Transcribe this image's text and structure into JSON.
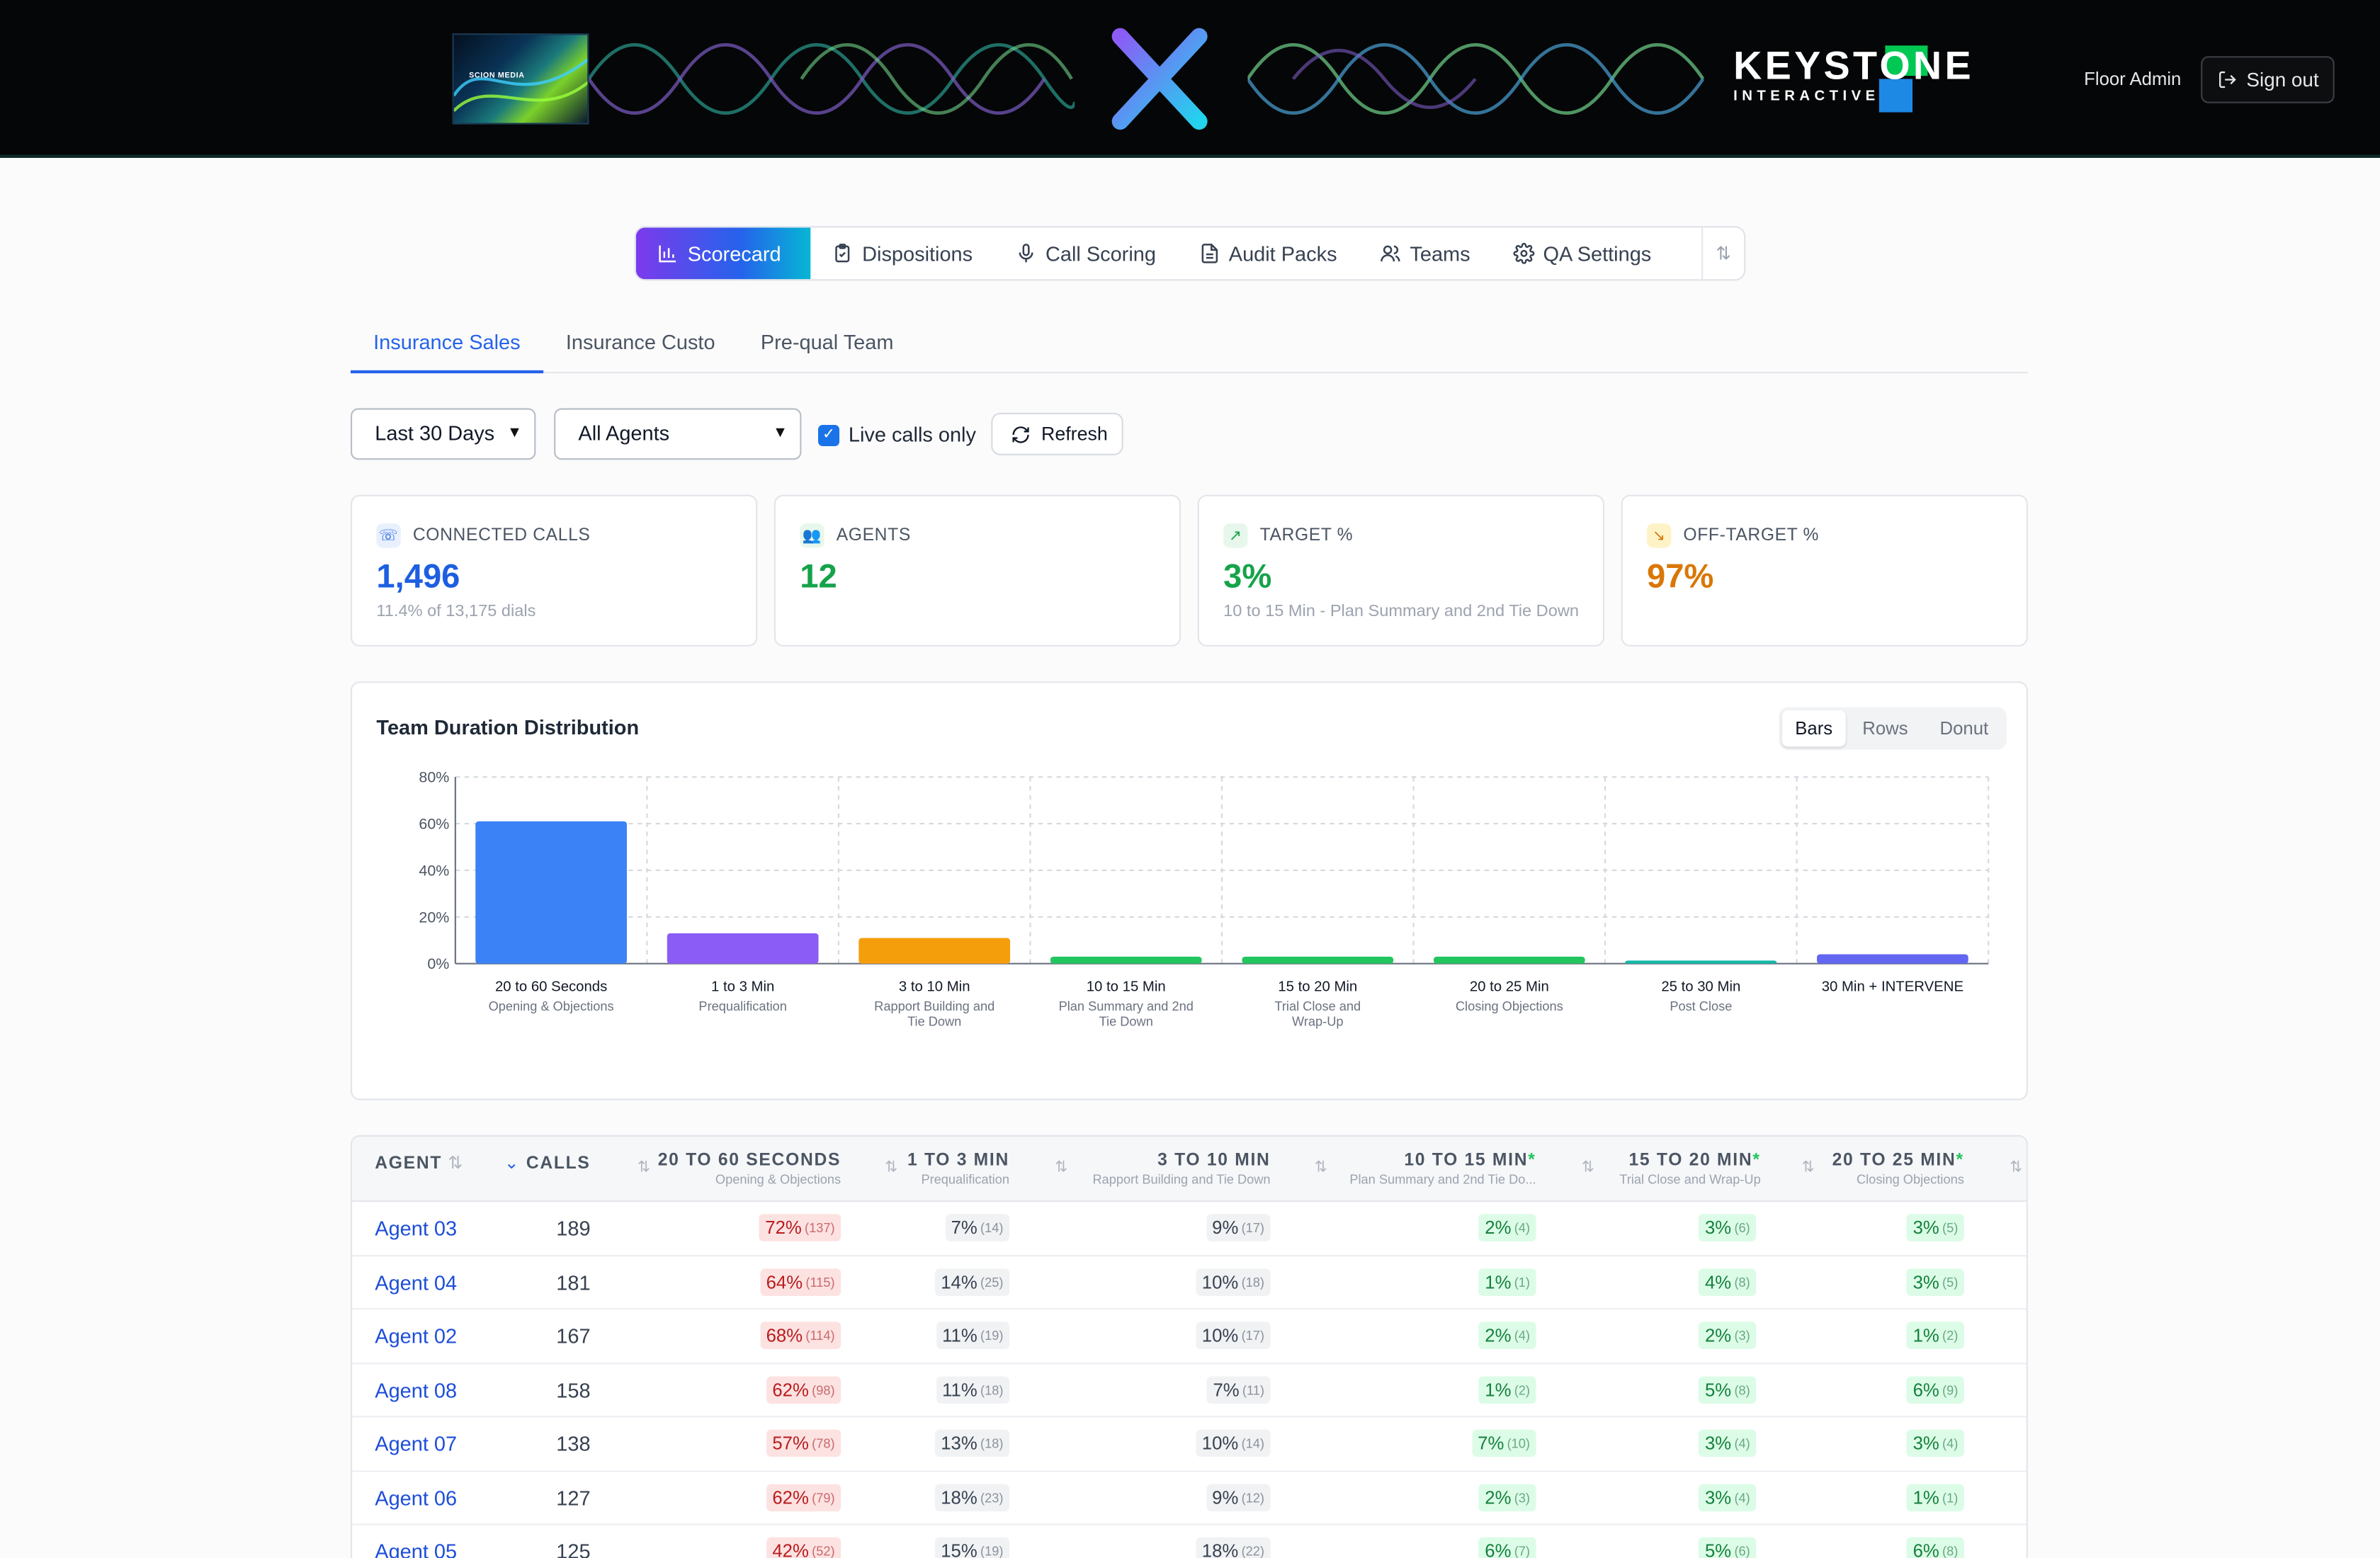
{
  "header": {
    "left_logo_text": "SCION MEDIA",
    "right_logo_line1": "KEYSTONE",
    "right_logo_line2": "INTERACTIVE",
    "user": "Floor Admin",
    "signout": "Sign out"
  },
  "nav": {
    "tabs": [
      "Scorecard",
      "Dispositions",
      "Call Scoring",
      "Audit Packs",
      "Teams",
      "QA Settings"
    ],
    "active": "Scorecard"
  },
  "subtabs": [
    "Insurance Sales",
    "Insurance Custo",
    "Pre-qual Team"
  ],
  "filters": {
    "range": "Last 30 Days",
    "agents": "All Agents",
    "live_label": "Live calls only",
    "live_checked": true,
    "refresh": "Refresh"
  },
  "stats": [
    {
      "label": "CONNECTED CALLS",
      "value": "1,496",
      "sub": "11.4% of 13,175 dials",
      "color": "#1d5fe0",
      "icon": "phone-icon"
    },
    {
      "label": "AGENTS",
      "value": "12",
      "sub": "",
      "color": "#16a34a",
      "icon": "users-icon"
    },
    {
      "label": "TARGET %",
      "value": "3%",
      "sub": "10 to 15 Min - Plan Summary and 2nd Tie Down",
      "color": "#16a34a",
      "icon": "trend-up-icon"
    },
    {
      "label": "OFF-TARGET %",
      "value": "97%",
      "sub": "",
      "color": "#d97706",
      "icon": "trend-down-icon"
    }
  ],
  "chart_panel": {
    "title": "Team Duration Distribution",
    "view_options": [
      "Bars",
      "Rows",
      "Donut"
    ],
    "active_view": "Bars"
  },
  "chart_data": {
    "type": "bar",
    "title": "Team Duration Distribution",
    "categories": [
      "20 to 60 Seconds",
      "1 to 3 Min",
      "3 to 10 Min",
      "10 to 15 Min",
      "15 to 20 Min",
      "20 to 25 Min",
      "25 to 30 Min",
      "30 Min + INTERVENE"
    ],
    "category_sublabels": [
      "Opening & Objections",
      "Prequalification",
      "Rapport Building and Tie Down",
      "Plan Summary and 2nd Tie Down",
      "Trial Close and Wrap-Up",
      "Closing Objections",
      "Post Close",
      ""
    ],
    "values": [
      61,
      13,
      11,
      3,
      3,
      3,
      1,
      4
    ],
    "colors": [
      "#3b82f6",
      "#8b5cf6",
      "#f59e0b",
      "#22c55e",
      "#22c55e",
      "#22c55e",
      "#14b8a6",
      "#6366f1"
    ],
    "ylim": [
      0,
      80
    ],
    "yticks": [
      "0%",
      "20%",
      "40%",
      "60%",
      "80%"
    ],
    "grid": true
  },
  "table": {
    "columns": [
      {
        "h": "AGENT",
        "s": ""
      },
      {
        "h": "CALLS",
        "s": ""
      },
      {
        "h": "20 TO 60 SECONDS",
        "s": "Opening & Objections"
      },
      {
        "h": "1 TO 3 MIN",
        "s": "Prequalification"
      },
      {
        "h": "3 TO 10 MIN",
        "s": "Rapport Building and Tie Down"
      },
      {
        "h": "10 TO 15 MIN",
        "s": "Plan Summary and 2nd Tie Do..."
      },
      {
        "h": "15 TO 20 MIN",
        "s": "Trial Close and Wrap-Up"
      },
      {
        "h": "20 TO 25 MIN",
        "s": "Closing Objections"
      }
    ],
    "rows": [
      {
        "agent": "Agent 03",
        "calls": "189",
        "cells": [
          [
            "72%",
            "(137)"
          ],
          [
            "7%",
            "(14)"
          ],
          [
            "9%",
            "(17)"
          ],
          [
            "2%",
            "(4)"
          ],
          [
            "3%",
            "(6)"
          ],
          [
            "3%",
            "(5)"
          ]
        ]
      },
      {
        "agent": "Agent 04",
        "calls": "181",
        "cells": [
          [
            "64%",
            "(115)"
          ],
          [
            "14%",
            "(25)"
          ],
          [
            "10%",
            "(18)"
          ],
          [
            "1%",
            "(1)"
          ],
          [
            "4%",
            "(8)"
          ],
          [
            "3%",
            "(5)"
          ]
        ]
      },
      {
        "agent": "Agent 02",
        "calls": "167",
        "cells": [
          [
            "68%",
            "(114)"
          ],
          [
            "11%",
            "(19)"
          ],
          [
            "10%",
            "(17)"
          ],
          [
            "2%",
            "(4)"
          ],
          [
            "2%",
            "(3)"
          ],
          [
            "1%",
            "(2)"
          ]
        ]
      },
      {
        "agent": "Agent 08",
        "calls": "158",
        "cells": [
          [
            "62%",
            "(98)"
          ],
          [
            "11%",
            "(18)"
          ],
          [
            "7%",
            "(11)"
          ],
          [
            "1%",
            "(2)"
          ],
          [
            "5%",
            "(8)"
          ],
          [
            "6%",
            "(9)"
          ]
        ]
      },
      {
        "agent": "Agent 07",
        "calls": "138",
        "cells": [
          [
            "57%",
            "(78)"
          ],
          [
            "13%",
            "(18)"
          ],
          [
            "10%",
            "(14)"
          ],
          [
            "7%",
            "(10)"
          ],
          [
            "3%",
            "(4)"
          ],
          [
            "3%",
            "(4)"
          ]
        ]
      },
      {
        "agent": "Agent 06",
        "calls": "127",
        "cells": [
          [
            "62%",
            "(79)"
          ],
          [
            "18%",
            "(23)"
          ],
          [
            "9%",
            "(12)"
          ],
          [
            "2%",
            "(3)"
          ],
          [
            "3%",
            "(4)"
          ],
          [
            "1%",
            "(1)"
          ]
        ]
      },
      {
        "agent": "Agent 05",
        "calls": "125",
        "cells": [
          [
            "42%",
            "(52)"
          ],
          [
            "15%",
            "(19)"
          ],
          [
            "18%",
            "(22)"
          ],
          [
            "6%",
            "(7)"
          ],
          [
            "5%",
            "(6)"
          ],
          [
            "6%",
            "(8)"
          ]
        ]
      }
    ]
  }
}
